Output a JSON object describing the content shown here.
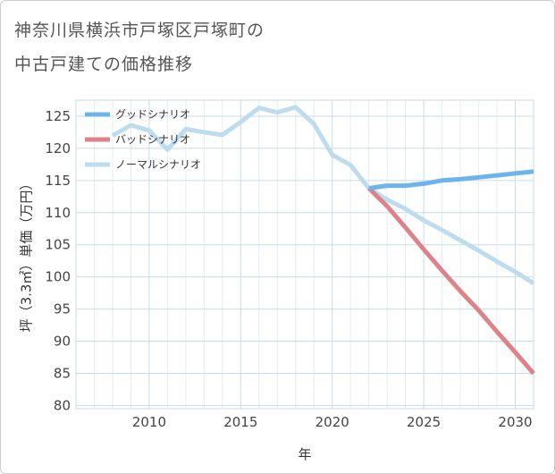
{
  "title_line1": "神奈川県横浜市戸塚区戸塚町の",
  "title_line2": "中古戸建ての価格推移",
  "chart_data": {
    "type": "line",
    "title": "神奈川県横浜市戸塚区戸塚町の中古戸建ての価格推移",
    "xlabel": "年",
    "ylabel": "坪（3.3㎡）単価（万円）",
    "xlim": [
      2006,
      2031
    ],
    "ylim": [
      79.5,
      127.5
    ],
    "xticks": [
      2010,
      2015,
      2020,
      2025,
      2030
    ],
    "yticks": [
      80,
      85,
      90,
      95,
      100,
      105,
      110,
      115,
      120,
      125
    ],
    "grid": true,
    "legend_position": "top-left",
    "series": [
      {
        "name": "グッドシナリオ",
        "color": "#6cb4ee",
        "x": [
          2022,
          2023,
          2024,
          2025,
          2026,
          2027,
          2028,
          2029,
          2030,
          2031
        ],
        "y": [
          113.8,
          114.2,
          114.2,
          114.5,
          115.0,
          115.2,
          115.5,
          115.8,
          116.1,
          116.4
        ]
      },
      {
        "name": "バッドシナリオ",
        "color": "#dd8288",
        "x": [
          2022,
          2023,
          2024,
          2025,
          2026,
          2027,
          2028,
          2029,
          2030,
          2031
        ],
        "y": [
          113.8,
          111.0,
          107.7,
          104.3,
          101.0,
          97.8,
          94.8,
          91.5,
          88.3,
          85.0
        ]
      },
      {
        "name": "ノーマルシナリオ",
        "color": "#bddcee",
        "x": [
          2008,
          2009,
          2010,
          2011,
          2012,
          2013,
          2014,
          2015,
          2016,
          2017,
          2018,
          2019,
          2020,
          2021,
          2022,
          2023,
          2024,
          2025,
          2026,
          2027,
          2028,
          2029,
          2030,
          2031
        ],
        "y": [
          122.0,
          123.6,
          122.8,
          119.8,
          123.0,
          122.5,
          122.1,
          124.1,
          126.3,
          125.6,
          126.4,
          123.8,
          119.0,
          117.4,
          113.8,
          112.0,
          110.6,
          108.8,
          107.3,
          105.7,
          104.1,
          102.4,
          100.8,
          99.0
        ]
      }
    ]
  }
}
